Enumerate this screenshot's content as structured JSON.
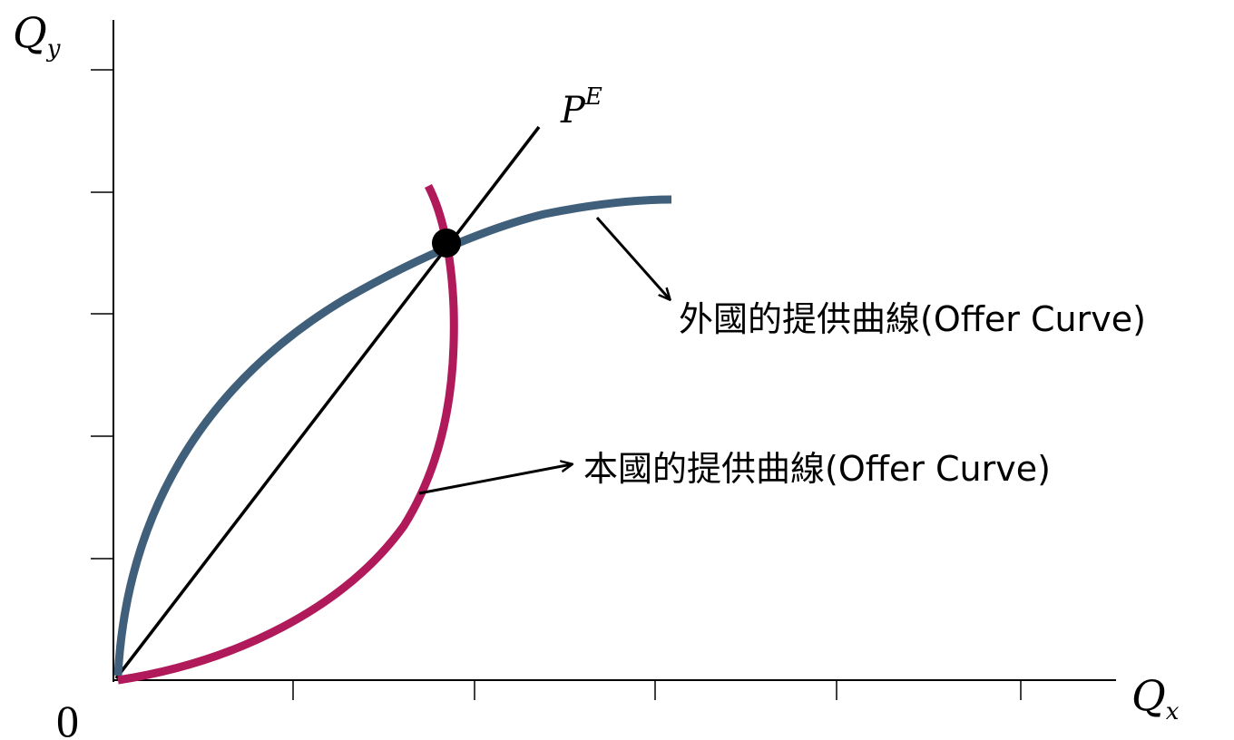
{
  "axes": {
    "y_label": "Q",
    "y_sub": "y",
    "x_label": "Q",
    "x_sub": "x",
    "origin": "0"
  },
  "price_line": {
    "label": "P",
    "label_sup": "E"
  },
  "foreign_curve": {
    "label": "外國的提供曲線(Offer Curve)",
    "color": "#3f5f7a"
  },
  "home_curve": {
    "label": "本國的提供曲線(Offer Curve)",
    "color": "#b01a5a"
  },
  "equilibrium": {
    "color": "#000000"
  }
}
